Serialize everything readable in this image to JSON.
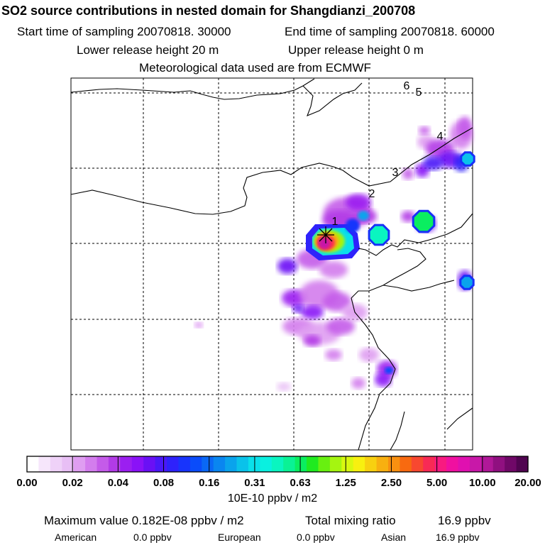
{
  "header": {
    "title": "SO2 source contributions in nested domain for Shangdianzi_200708",
    "start_label": "Start time of sampling 20070818. 30000",
    "end_label": "End time of sampling 20070818. 60000",
    "lower_release": "Lower release height   20 m",
    "upper_release": "Upper release height    0 m",
    "met_data": "Meteorological data used are from ECMWF"
  },
  "chart_data": {
    "type": "heatmap",
    "title": "SO2 source contributions in nested domain for Shangdianzi_200708",
    "units": "10E-10 ppbv / m2",
    "colorbar": {
      "tick_labels": [
        "0.00",
        "0.02",
        "0.04",
        "0.08",
        "0.16",
        "0.31",
        "0.63",
        "1.25",
        "2.50",
        "5.00",
        "10.00",
        "20.00"
      ],
      "colors": [
        "#ffffff",
        "#f6e6fb",
        "#efd2f8",
        "#e8bff5",
        "#df9ef1",
        "#d37ded",
        "#c45be9",
        "#b23be6",
        "#9b1ff0",
        "#8a12f7",
        "#6a10f5",
        "#4a18f8",
        "#2e22fb",
        "#1834fc",
        "#0a4cfa",
        "#0a68f5",
        "#0a86f0",
        "#0aa3ec",
        "#0ac2ea",
        "#0ae0ea",
        "#0af0e0",
        "#0af5c0",
        "#0af295",
        "#0aee60",
        "#20ea20",
        "#68f010",
        "#a5f510",
        "#d8f810",
        "#f8f010",
        "#f8d010",
        "#f8b010",
        "#f89010",
        "#f86a10",
        "#f84830",
        "#f82a55",
        "#f81a80",
        "#f010a0",
        "#e010b0",
        "#c818a8",
        "#b01898",
        "#901080",
        "#700868",
        "#500450"
      ]
    },
    "receptor": {
      "name": "Shangdianzi",
      "marker": "asterisk-icon"
    },
    "trajectory_labels": [
      "1",
      "2",
      "3",
      "4",
      "5",
      "6"
    ],
    "hotspots": [
      {
        "label": "receptor-plume",
        "level": 35
      },
      {
        "label": "plume-cyan",
        "level": 21
      },
      {
        "label": "ring-east",
        "level": 19
      },
      {
        "label": "ring-ne",
        "level": 20
      },
      {
        "label": "ring-far-ne",
        "level": 18
      },
      {
        "label": "ring-east-edge",
        "level": 17
      },
      {
        "label": "south-blob",
        "level": 12
      }
    ],
    "maximum_value": "0.182E-08 ppbv / m2",
    "total_mixing_ratio": "16.9 ppbv"
  },
  "footer": {
    "max_label": "Maximum value  0.182E-08 ppbv / m2",
    "total_label": "Total mixing ratio",
    "total_value": "16.9 ppbv",
    "american_label": "American",
    "american_value": "0.0 ppbv",
    "european_label": "European",
    "european_value": "0.0 ppbv",
    "asian_label": "Asian",
    "asian_value": "16.9 ppbv"
  }
}
